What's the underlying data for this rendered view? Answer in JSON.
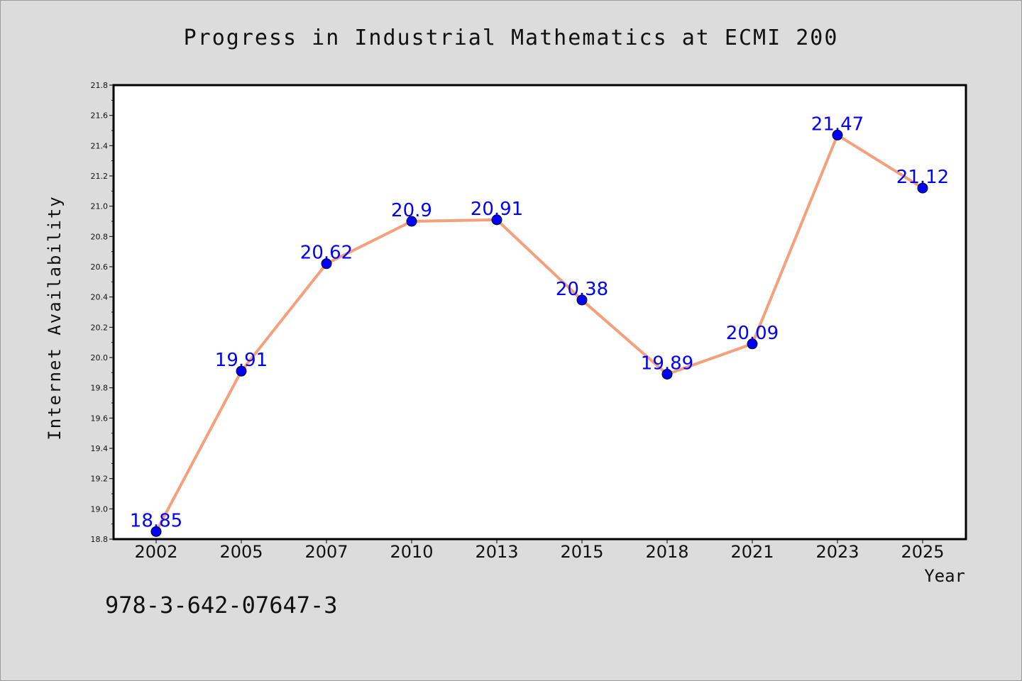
{
  "chart_data": {
    "type": "line",
    "title": "Progress in Industrial Mathematics at ECMI 200",
    "xlabel": "Year",
    "ylabel": "Internet Availability",
    "categories": [
      "2002",
      "2005",
      "2007",
      "2010",
      "2013",
      "2015",
      "2018",
      "2021",
      "2023",
      "2025"
    ],
    "values": [
      18.85,
      19.91,
      20.62,
      20.9,
      20.91,
      20.38,
      19.89,
      20.09,
      21.47,
      21.12
    ],
    "data_labels": [
      "18.85",
      "19.91",
      "20.62",
      "20.9",
      "20.91",
      "20.38",
      "19.89",
      "20.09",
      "21.47",
      "21.12"
    ],
    "ylim": [
      18.8,
      21.8
    ],
    "yticks": [
      "18.8",
      "19.0",
      "19.2",
      "19.4",
      "19.6",
      "19.8",
      "20.0",
      "20.2",
      "20.4",
      "20.6",
      "20.8",
      "21.0",
      "21.2",
      "21.4",
      "21.6",
      "21.8"
    ],
    "grid": false,
    "line_color": "#f4a07c",
    "marker_color": "#0000ff",
    "label_color": "#0000ff",
    "footer_text": "978-3-642-07647-3"
  }
}
